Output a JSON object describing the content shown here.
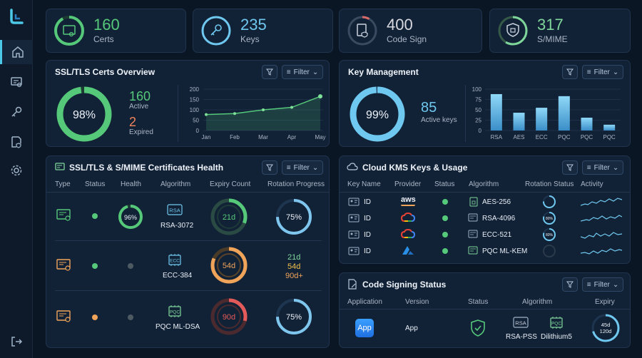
{
  "stats": [
    {
      "value": "160",
      "label": "Certs",
      "color": "#55c87a",
      "icon": "certificate-icon"
    },
    {
      "value": "235",
      "label": "Keys",
      "color": "#6fc8ef",
      "icon": "key-icon"
    },
    {
      "value": "400",
      "label": "Code Sign",
      "color": "#d9d9e0",
      "icon": "code-sign-icon"
    },
    {
      "value": "317",
      "label": "S/MIME",
      "color": "#7fd69b",
      "icon": "smime-shield-icon"
    }
  ],
  "filter_label": "Filter",
  "ssl_overview": {
    "title": "SSL/TLS Certs Overview",
    "percent": "98%",
    "active_value": "160",
    "active_label": "Active",
    "expired_value": "2",
    "expired_label": "Expired"
  },
  "key_mgmt": {
    "title": "Key Management",
    "percent": "99%",
    "active_value": "85",
    "active_label": "Active keys"
  },
  "chart_data": [
    {
      "type": "line",
      "x": [
        "Jan",
        "Feb",
        "Mar",
        "Apr",
        "May"
      ],
      "series": [
        {
          "values": [
            77,
            82,
            100,
            112,
            165
          ]
        }
      ],
      "ylim": [
        0,
        200
      ],
      "yticks": [
        "0",
        "50",
        "100",
        "150",
        "200"
      ]
    },
    {
      "type": "bar",
      "categories": [
        "RSA",
        "AES",
        "ECC",
        "PQC",
        "PQC",
        "PQC"
      ],
      "values": [
        88,
        43,
        55,
        83,
        31,
        14
      ],
      "ylim": [
        0,
        100
      ],
      "yticks": [
        "0",
        "25",
        "50",
        "75",
        "100"
      ]
    }
  ],
  "health": {
    "title": "SSL/TLS & S/MIME Certificates Health",
    "headers": [
      "Type",
      "Status",
      "Health",
      "Algorithm",
      "Expiry Count",
      "Rotation Progress"
    ],
    "rows": [
      {
        "status_color": "#55c87a",
        "health": "96%",
        "algo_badge": "RSA",
        "algo": "RSA-3072",
        "expiry": "21d",
        "rotation": "75%"
      },
      {
        "status_color": "#55c87a",
        "health": "",
        "algo_badge": "ECC",
        "algo": "ECC-384",
        "expiry": "54d",
        "rotation_lines": [
          "21d",
          "54d",
          "90d+"
        ]
      },
      {
        "status_color": "#f0a45a",
        "health": "",
        "algo_badge": "PQC",
        "algo": "PQC ML-DSA",
        "expiry": "90d",
        "rotation": "75%"
      }
    ]
  },
  "kms": {
    "title": "Cloud KMS Keys & Usage",
    "headers": [
      "Key Name",
      "Provider",
      "Status",
      "Algorithm",
      "Rotation Status",
      "Activity"
    ],
    "rows": [
      {
        "key": "ID",
        "provider": "aws",
        "algo": "AES-256",
        "rot": ""
      },
      {
        "key": "ID",
        "provider": "gcp",
        "algo": "RSA-4096",
        "rot": "80%"
      },
      {
        "key": "ID",
        "provider": "gcp",
        "algo": "ECC-521",
        "rot": "80%"
      },
      {
        "key": "ID",
        "provider": "azure",
        "algo": "PQC ML-KEM",
        "rot": ""
      }
    ]
  },
  "codesign": {
    "title": "Code Signing Status",
    "headers": [
      "Application",
      "Version",
      "Status",
      "Algorithm",
      "Expiry"
    ],
    "app_icon": "App",
    "version": "App",
    "algo1_badge": "RSA",
    "algo1": "RSA-PSS",
    "algo2_badge": "PQC",
    "algo2": "Dilithium5",
    "expiry1": "45d",
    "expiry2": "120d"
  }
}
